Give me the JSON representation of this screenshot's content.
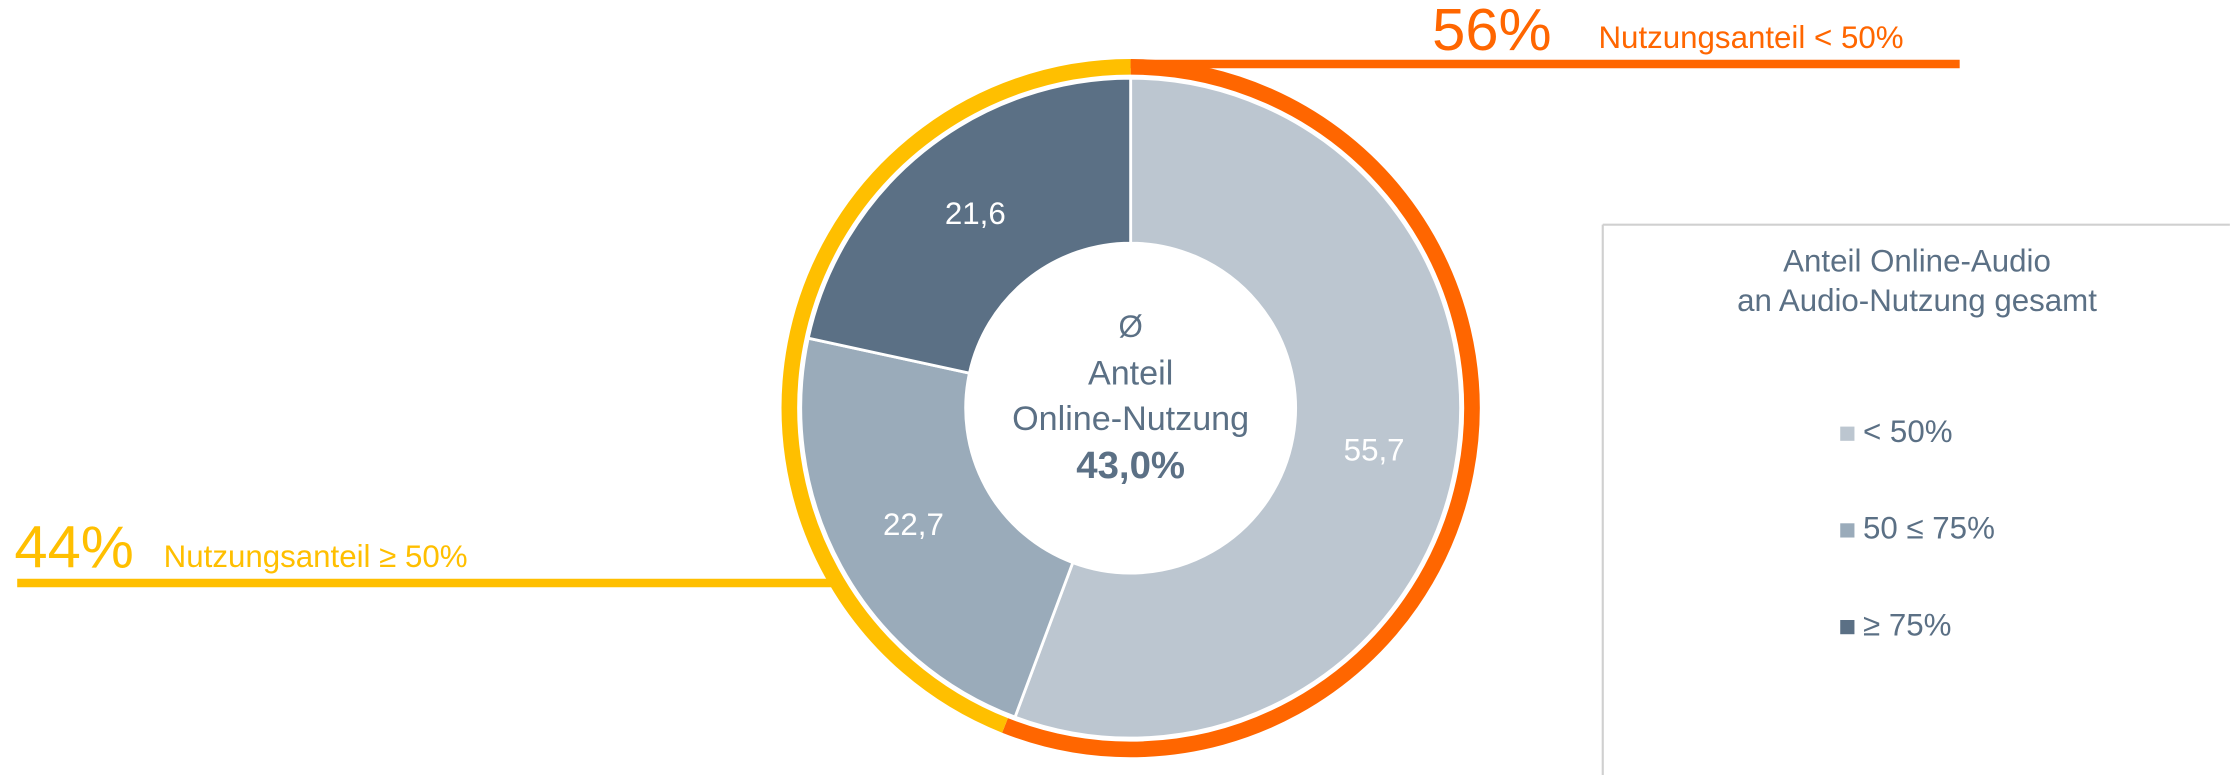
{
  "chart_data": {
    "type": "donut",
    "categories": [
      "< 50%",
      "50 ≤ 75%",
      "≥ 75%"
    ],
    "values": [
      55.7,
      22.7,
      21.6
    ],
    "value_labels": [
      "55,7",
      "22,7",
      "21,6"
    ],
    "colors": [
      "#bcc6d0",
      "#9aabba",
      "#5b7085"
    ],
    "center_text": [
      "Ø",
      "Anteil",
      "Online-Nutzung"
    ],
    "center_value_label": "43,0%",
    "legend_title": [
      "Anteil Online-Audio",
      "an Audio-Nutzung gesamt"
    ],
    "outer_ring": [
      {
        "name": "Nutzungsanteil < 50%",
        "value": 56,
        "value_label": "56%",
        "color": "#ff6600"
      },
      {
        "name": "Nutzungsanteil ≥ 50%",
        "value": 44,
        "value_label": "44%",
        "color": "#ffbf00"
      }
    ]
  }
}
